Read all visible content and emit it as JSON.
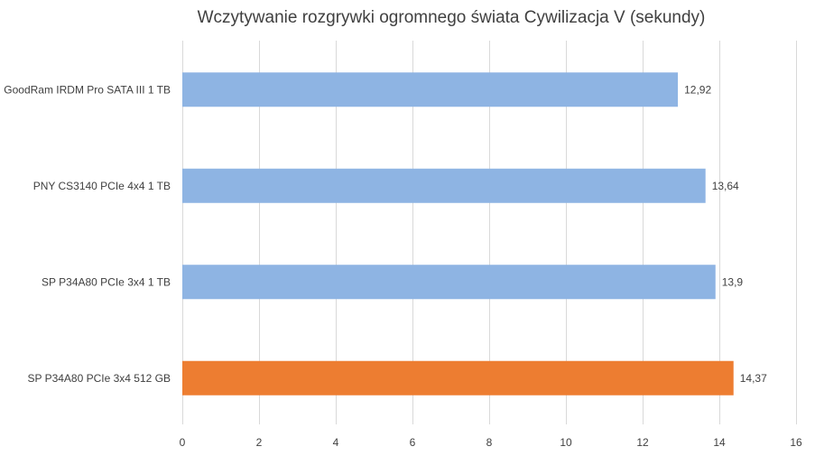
{
  "chart_data": {
    "type": "bar",
    "orientation": "horizontal",
    "title": "Wczytywanie rozgrywki ogromnego świata Cywilizacja V (sekundy)",
    "categories": [
      "GoodRam IRDM Pro SATA III 1 TB",
      "PNY CS3140 PCIe 4x4 1 TB",
      "SP P34A80 PCIe 3x4 1 TB",
      "SP P34A80 PCIe 3x4 512 GB"
    ],
    "values": [
      12.92,
      13.64,
      13.9,
      14.37
    ],
    "value_labels": [
      "12,92",
      "13,64",
      "13,9",
      "14,37"
    ],
    "bar_colors": [
      "#8eb4e3",
      "#8eb4e3",
      "#8eb4e3",
      "#ed7d31"
    ],
    "xlim": [
      0,
      16
    ],
    "x_ticks": [
      0,
      2,
      4,
      6,
      8,
      10,
      12,
      14,
      16
    ],
    "x_tick_labels": [
      "0",
      "2",
      "4",
      "6",
      "8",
      "10",
      "12",
      "14",
      "16"
    ],
    "grid": true,
    "legend": "none"
  }
}
